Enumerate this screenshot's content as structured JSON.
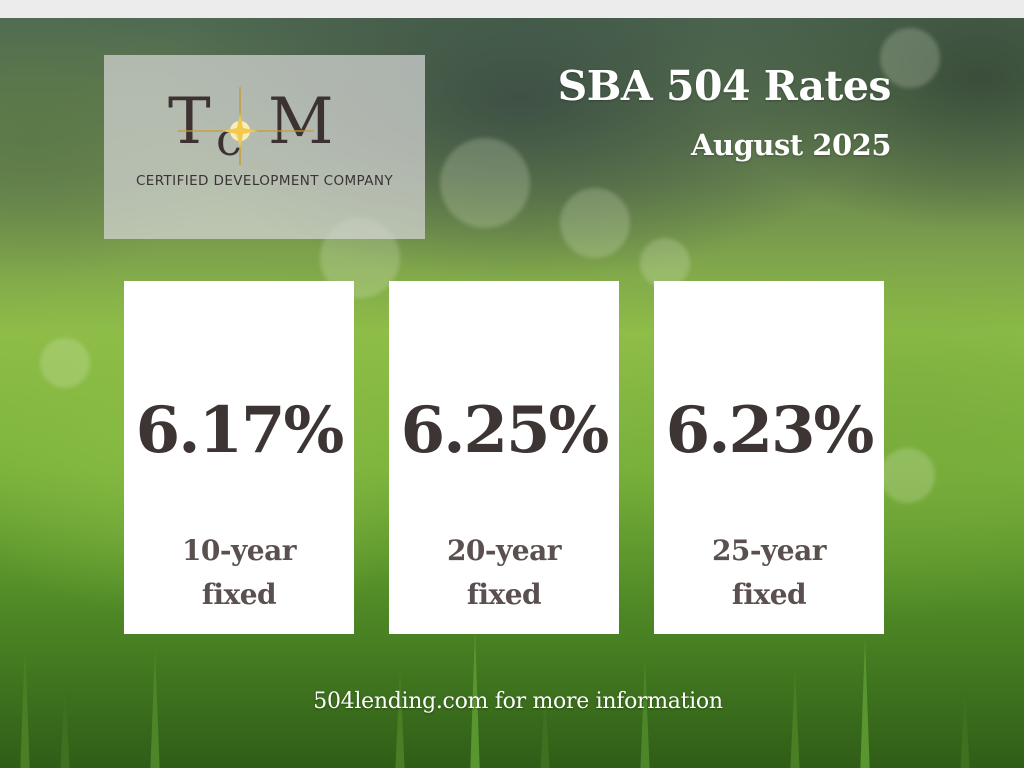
{
  "logo": {
    "monogram": "TcM",
    "tagline": "CERTIFIED DEVELOPMENT COMPANY"
  },
  "header": {
    "title": "SBA 504 Rates",
    "subtitle": "August 2025"
  },
  "rates": [
    {
      "value": "6.17%",
      "term_line1": "10-year",
      "term_line2": "fixed"
    },
    {
      "value": "6.25%",
      "term_line1": "20-year",
      "term_line2": "fixed"
    },
    {
      "value": "6.23%",
      "term_line1": "25-year",
      "term_line2": "fixed"
    }
  ],
  "footer": {
    "text": "504lending.com for more information"
  },
  "colors": {
    "card_background": "#ffffff",
    "rate_text": "#3d3434",
    "term_text": "#5a5050",
    "heading_text": "#ffffff",
    "logo_star": "#f2c94c"
  }
}
